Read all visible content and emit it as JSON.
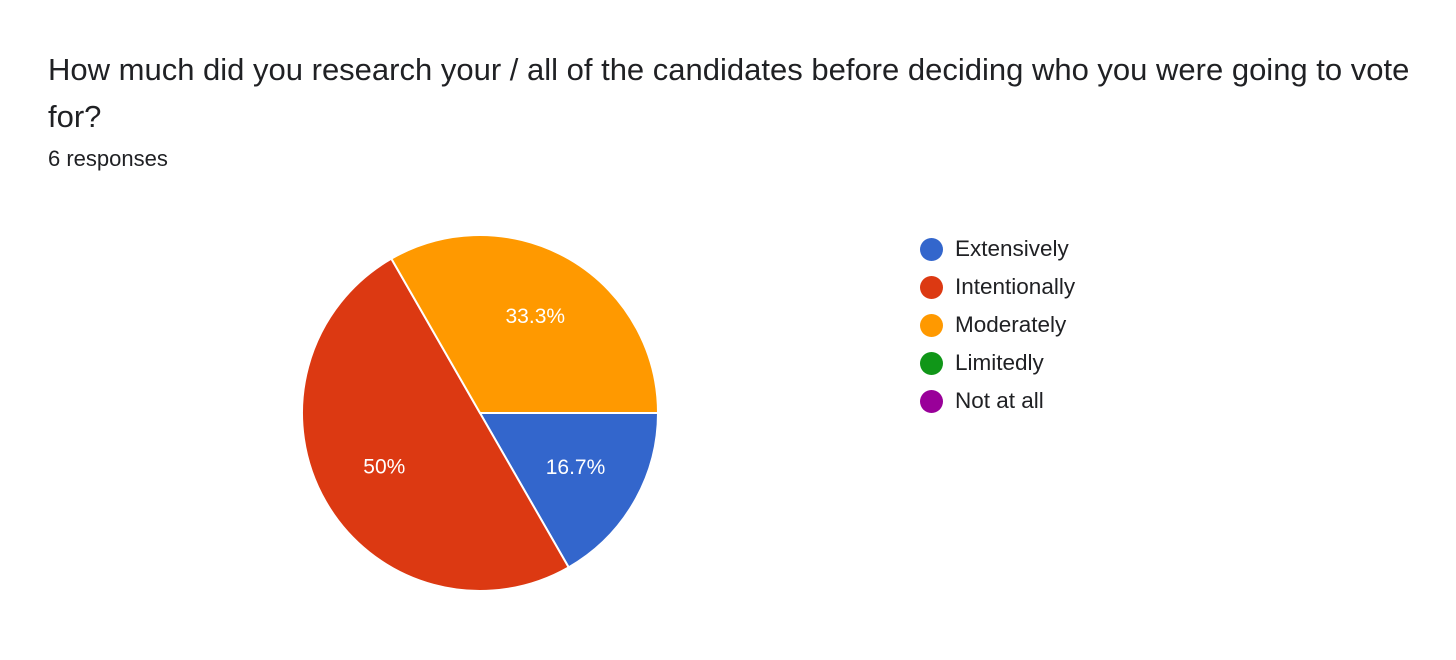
{
  "question": "How much did you research your / all of the candidates before deciding who you were going to vote for?",
  "response_count": "6 responses",
  "chart_data": {
    "type": "pie",
    "title": "How much did you research your / all of the candidates before deciding who you were going to vote for?",
    "subtitle": "6 responses",
    "legend_position": "right",
    "slices": [
      {
        "label": "Extensively",
        "value": 16.7,
        "display": "16.7%",
        "color": "#3366cc"
      },
      {
        "label": "Intentionally",
        "value": 50,
        "display": "50%",
        "color": "#dc3912"
      },
      {
        "label": "Moderately",
        "value": 33.3,
        "display": "33.3%",
        "color": "#ff9900"
      },
      {
        "label": "Limitedly",
        "value": 0,
        "display": "",
        "color": "#109618"
      },
      {
        "label": "Not at all",
        "value": 0,
        "display": "",
        "color": "#990099"
      }
    ]
  }
}
